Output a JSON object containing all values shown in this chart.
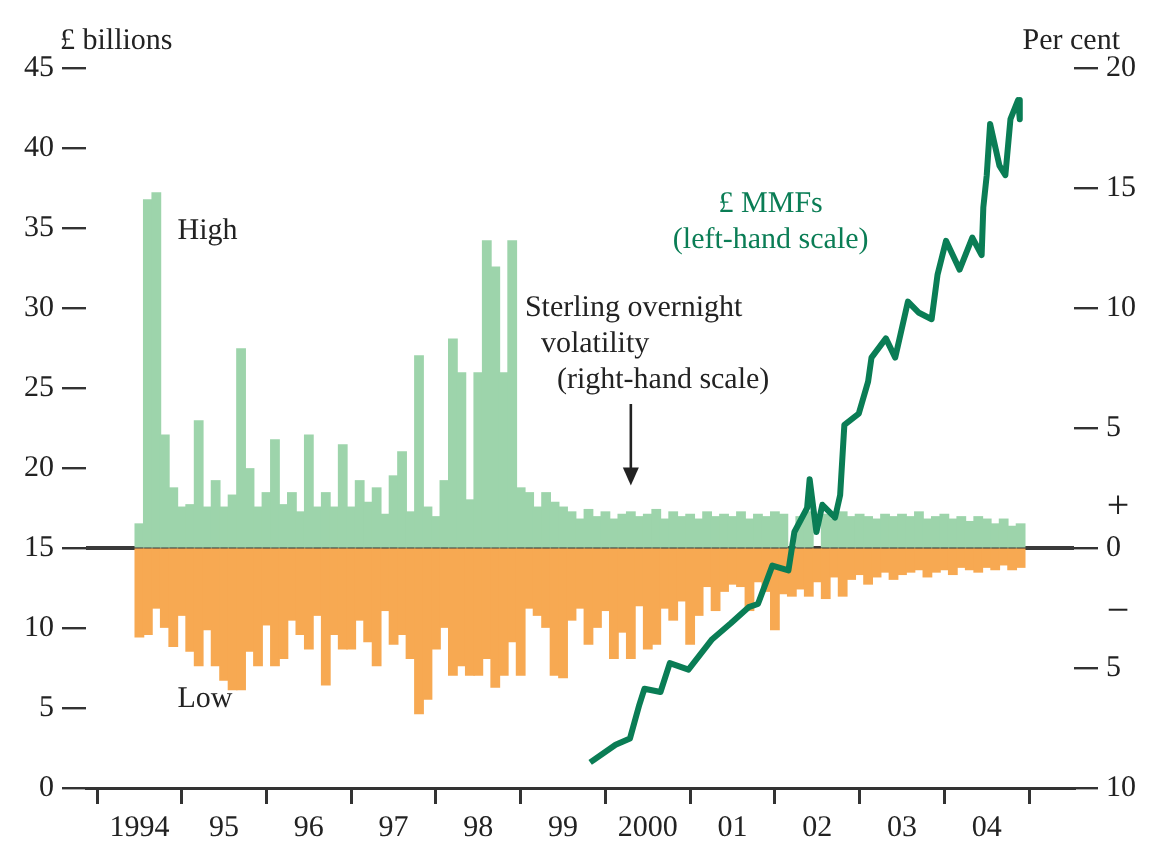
{
  "chart_data": {
    "type": "bar",
    "ylabel": "£ billions",
    "y2label": "Per cent",
    "x": [
      1994.0,
      1994.1,
      1994.2,
      1994.3,
      1994.4,
      1994.5,
      1994.6,
      1994.7,
      1994.8,
      1994.9,
      1995.0,
      1995.1,
      1995.2,
      1995.3,
      1995.4,
      1995.5,
      1995.6,
      1995.7,
      1995.8,
      1995.9,
      1996.0,
      1996.1,
      1996.2,
      1996.3,
      1996.4,
      1996.5,
      1996.6,
      1996.7,
      1996.8,
      1996.9,
      1997.0,
      1997.1,
      1997.2,
      1997.3,
      1997.4,
      1997.5,
      1997.6,
      1997.7,
      1997.8,
      1997.9,
      1998.0,
      1998.1,
      1998.2,
      1998.3,
      1998.4,
      1998.5,
      1998.6,
      1998.7,
      1998.8,
      1998.9,
      1999.0,
      1999.1,
      1999.2,
      1999.3,
      1999.4,
      1999.5,
      1999.6,
      1999.7,
      1999.8,
      1999.9,
      2000.0,
      2000.1,
      2000.2,
      2000.3,
      2000.4,
      2000.5,
      2000.6,
      2000.7,
      2000.8,
      2000.9,
      2001.0,
      2001.1,
      2001.2,
      2001.3,
      2001.4,
      2001.5,
      2001.6,
      2001.7,
      2001.8,
      2001.9,
      2002.0,
      2002.1,
      2002.2,
      2002.3,
      2002.4,
      2002.5,
      2002.6,
      2002.7,
      2002.8,
      2002.9,
      2003.0,
      2003.1,
      2003.2,
      2003.3,
      2003.4,
      2003.5,
      2003.6,
      2003.7,
      2003.8,
      2003.9,
      2004.0,
      2004.1,
      2004.2,
      2004.3,
      2004.4
    ],
    "series": [
      {
        "name": "High",
        "axis": "y2",
        "color": "#9dd4ab",
        "values": [
          1.0,
          14.5,
          14.8,
          4.7,
          2.5,
          1.7,
          1.8,
          5.3,
          1.7,
          2.8,
          1.7,
          2.2,
          8.3,
          3.3,
          1.7,
          2.3,
          4.5,
          1.8,
          2.3,
          1.5,
          4.7,
          1.7,
          2.3,
          1.7,
          4.3,
          1.7,
          2.8,
          1.9,
          2.5,
          1.4,
          3.0,
          4.0,
          1.5,
          8.0,
          1.7,
          1.3,
          2.8,
          8.7,
          7.3,
          2.0,
          7.3,
          12.8,
          11.7,
          7.3,
          12.8,
          2.5,
          2.3,
          1.7,
          2.3,
          1.9,
          1.7,
          1.5,
          1.2,
          1.6,
          1.3,
          1.5,
          1.2,
          1.4,
          1.5,
          1.3,
          1.4,
          1.6,
          1.2,
          1.5,
          1.3,
          1.4,
          1.2,
          1.5,
          1.3,
          1.4,
          1.3,
          1.5,
          1.2,
          1.4,
          1.3,
          1.5,
          1.4,
          null,
          1.3,
          1.5,
          null,
          1.4,
          1.2,
          1.5,
          1.3,
          1.4,
          1.3,
          1.2,
          1.4,
          1.3,
          1.4,
          1.3,
          1.5,
          1.2,
          1.3,
          1.4,
          1.2,
          1.3,
          1.1,
          1.3,
          1.2,
          1.0,
          1.2,
          0.9,
          1.0
        ]
      },
      {
        "name": "Low",
        "axis": "y2",
        "color": "#f7a952",
        "values": [
          -3.7,
          -3.6,
          -2.5,
          -3.3,
          -4.1,
          -2.8,
          -4.3,
          -4.9,
          -3.4,
          -4.9,
          -5.5,
          -5.9,
          -5.9,
          -4.3,
          -4.9,
          -3.2,
          -4.9,
          -4.6,
          -3.0,
          -3.6,
          -4.2,
          -2.8,
          -5.7,
          -3.6,
          -4.2,
          -4.2,
          -3.0,
          -3.9,
          -4.9,
          -2.6,
          -4.0,
          -3.6,
          -4.6,
          -6.9,
          -6.3,
          -4.2,
          -3.3,
          -5.3,
          -4.9,
          -5.3,
          -5.3,
          -4.6,
          -5.8,
          -5.3,
          -3.9,
          -5.3,
          -2.5,
          -2.8,
          -3.3,
          -5.3,
          -5.4,
          -3.0,
          -2.5,
          -4.0,
          -3.3,
          -2.6,
          -4.6,
          -3.5,
          -4.6,
          -2.4,
          -4.2,
          -4.0,
          -2.5,
          -3.0,
          -2.2,
          -4.0,
          -2.8,
          -1.6,
          -2.6,
          -1.8,
          -1.5,
          -1.6,
          -2.6,
          -1.4,
          -1.8,
          -3.4,
          -1.9,
          -2.0,
          -1.7,
          -2.0,
          -1.4,
          -2.1,
          -1.2,
          -2.0,
          -1.3,
          -1.1,
          -1.5,
          -1.2,
          -1.0,
          -1.3,
          -1.1,
          -1.0,
          -0.9,
          -1.2,
          -1.0,
          -0.9,
          -1.1,
          -0.8,
          -0.9,
          -1.0,
          -0.8,
          -0.9,
          -0.7,
          -0.9,
          -0.8
        ]
      },
      {
        "name": "£ MMFs\n(left-hand scale)",
        "type": "line",
        "color": "#0a7d55",
        "x": [
          1999.32,
          1999.62,
          1999.79,
          1999.9,
          1999.96,
          2000.15,
          2000.26,
          2000.48,
          2000.76,
          2000.98,
          2001.19,
          2001.3,
          2001.47,
          2001.66,
          2001.73,
          2001.88,
          2001.91,
          2001.99,
          2002.06,
          2002.21,
          2002.27,
          2002.32,
          2002.49,
          2002.6,
          2002.64,
          2002.81,
          2002.92,
          2003.07,
          2003.2,
          2003.35,
          2003.42,
          2003.52,
          2003.68,
          2003.83,
          2003.94,
          2003.96,
          2004.0,
          2004.04,
          2004.15,
          2004.22,
          2004.28,
          2004.37,
          2004.39
        ],
        "values": [
          1.6,
          2.7,
          3.1,
          5.2,
          6.2,
          6.0,
          7.8,
          7.4,
          9.3,
          10.3,
          11.3,
          11.5,
          13.9,
          13.6,
          16.0,
          17.5,
          19.3,
          16.0,
          17.7,
          16.9,
          18.3,
          22.7,
          23.4,
          25.4,
          26.9,
          28.1,
          26.9,
          30.4,
          29.7,
          29.3,
          32.1,
          34.2,
          32.4,
          34.4,
          33.3,
          36.3,
          38.3,
          41.5,
          38.9,
          38.3,
          41.8,
          43.0,
          41.8
        ]
      }
    ],
    "xlim": [
      1993.9,
      2004.5
    ],
    "xticks": [
      1994,
      {
        "value": 1995,
        "label": "95"
      },
      {
        "value": 1996,
        "label": "96"
      },
      {
        "value": 1997,
        "label": "97"
      },
      {
        "value": 1998,
        "label": "98"
      },
      {
        "value": 1999,
        "label": "99"
      },
      2000,
      {
        "value": 2001,
        "label": "01"
      },
      {
        "value": 2002,
        "label": "02"
      },
      {
        "value": 2003,
        "label": "03"
      },
      {
        "value": 2004,
        "label": "04"
      }
    ],
    "stacked": true,
    "ylim": [
      0,
      45
    ],
    "yticks": [
      0,
      5,
      10,
      15,
      20,
      25,
      30,
      35,
      40,
      45
    ],
    "y2lim": [
      -10,
      20
    ],
    "y2ticks": [
      {
        "value": -10,
        "label": "10"
      },
      {
        "value": -5,
        "label": "5"
      },
      0,
      5,
      10,
      15,
      20
    ],
    "ref_lines": [
      {
        "axis": "y2",
        "value": 0,
        "color": "#3a3a3a"
      }
    ],
    "annotations": [
      "Sterling overnight\nvolatility\n(right-hand scale)",
      "+",
      "−"
    ],
    "grid": false,
    "legend": false,
    "marker": "none",
    "line_style": "solid"
  }
}
